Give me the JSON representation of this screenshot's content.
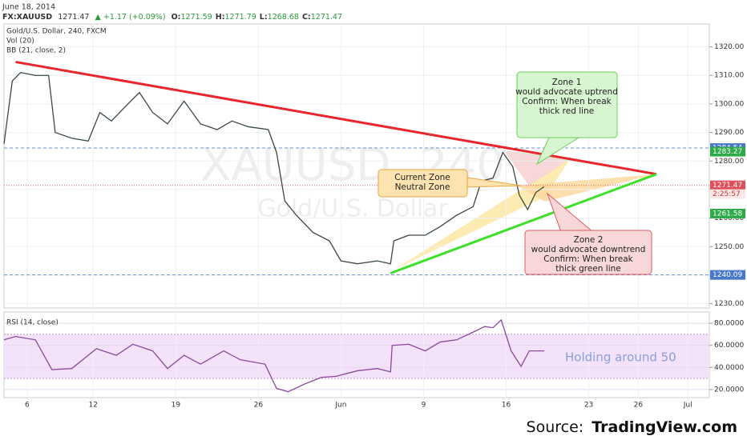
{
  "header": {
    "date": "June 18, 2014",
    "symbol": "FX:XAUUSD",
    "last": "1271.47",
    "change": "+1.17 (+0.09%)",
    "ohlc": [
      {
        "label": "O:",
        "value": "1271.59"
      },
      {
        "label": "H:",
        "value": "1271.79"
      },
      {
        "label": "L:",
        "value": "1268.68"
      },
      {
        "label": "C:",
        "value": "1271.47"
      }
    ]
  },
  "legend": [
    "Gold/U.S. Dollar, 240, FXCM",
    "Vol (20)",
    "BB (21, close, 2)"
  ],
  "watermark": [
    "XAUUSD, 240",
    "Gold/U.S. Dollar"
  ],
  "source": {
    "prefix": "Source:",
    "name": "TradingView.com"
  },
  "chart_data": [
    {
      "type": "line",
      "color": "#3a4a3a",
      "x": [
        -1.4,
        -0.9,
        -0.4,
        0.5,
        1.3,
        1.7,
        2.7,
        3.7,
        4.4,
        5.1,
        6.1,
        6.8,
        7.6,
        8.5,
        9.5,
        10.5,
        11.5,
        12.4,
        13.4,
        14.6,
        15.1,
        15.6,
        16.3,
        17.3,
        18.3,
        19.0,
        20.0,
        21.2,
        22.0,
        22.2,
        23.1,
        24.1,
        25.0,
        26.0,
        27.0,
        27.5,
        28.2,
        28.8,
        29.4,
        29.8,
        30.3,
        30.8,
        31.3
      ],
      "values": [
        1286,
        1308,
        1311,
        1310,
        1310,
        1290,
        1288,
        1287,
        1297,
        1294,
        1300,
        1304,
        1297,
        1293,
        1301,
        1293,
        1291,
        1294,
        1292,
        1291,
        1283,
        1266,
        1261,
        1255,
        1252,
        1245,
        1244,
        1245,
        1244,
        1252,
        1254,
        1254,
        1257,
        1261,
        1264,
        1273,
        1274,
        1283,
        1278,
        1268,
        1263,
        1269,
        1271
      ],
      "xlim": [
        -1.4,
        41.3
      ],
      "xticks": [
        {
          "value": 0,
          "label": "6"
        },
        {
          "value": 4,
          "label": "12"
        },
        {
          "value": 9,
          "label": "19"
        },
        {
          "value": 14,
          "label": "26"
        },
        {
          "value": 19,
          "label": "Jun"
        },
        {
          "value": 24,
          "label": "9"
        },
        {
          "value": 29,
          "label": "16"
        },
        {
          "value": 34,
          "label": "23"
        },
        {
          "value": 37,
          "label": "26"
        },
        {
          "value": 40,
          "label": "Jul"
        }
      ],
      "ylim": [
        1228.5,
        1328
      ],
      "yticks": [
        {
          "value": 1230,
          "label": "1230.00"
        },
        {
          "value": 1240,
          "label": "1240.00"
        },
        {
          "value": 1250,
          "label": "1250.00"
        },
        {
          "value": 1260,
          "label": "1260.00"
        },
        {
          "value": 1270,
          "label": "1270.00"
        },
        {
          "value": 1280,
          "label": "1280.00"
        },
        {
          "value": 1290,
          "label": "1290.00"
        },
        {
          "value": 1300,
          "label": "1300.00"
        },
        {
          "value": 1310,
          "label": "1310.00"
        },
        {
          "value": 1320,
          "label": "1320.00"
        }
      ],
      "grid": true,
      "trendlines": [
        {
          "color": "#e8262c",
          "x": [
            -0.7,
            38.1
          ],
          "values": [
            1314.7,
            1275.4
          ]
        },
        {
          "color": "#3ee02a",
          "x": [
            22.0,
            38.1
          ],
          "values": [
            1240.7,
            1275.4
          ]
        }
      ],
      "hlines": [
        {
          "value": 1284.54,
          "color": "#6a8fd0"
        },
        {
          "value": 1240.09,
          "color": "#6a8fd0"
        },
        {
          "value": 1271.47,
          "color": "#e06060"
        }
      ],
      "price_labels": [
        {
          "value": 1284.54,
          "color": "#4a78c8"
        },
        {
          "value": 1283.27,
          "color": "#2eaa4a"
        },
        {
          "value": 1271.47,
          "color": "#e0505a"
        },
        {
          "value": 1261.58,
          "color": "#2eaa4a"
        },
        {
          "value": 1240.09,
          "color": "#4a78c8"
        }
      ],
      "countdown": "2:25:57",
      "annotations": [
        {
          "lines": [
            "Zone 1",
            "would advocate uptrend",
            "Confirm: When break",
            "thick red line"
          ]
        },
        {
          "lines": [
            "Zone 2",
            "would advocate downtrend",
            "Confirm: When break",
            "thick green line"
          ]
        },
        {
          "lines": [
            "Current Zone",
            "Neutral Zone"
          ]
        }
      ]
    },
    {
      "type": "line",
      "title": "RSI (14, close)",
      "color": "#8a4a9a",
      "x": [
        -1.4,
        -0.7,
        0.5,
        1.5,
        2.7,
        4.2,
        5.4,
        6.4,
        7.6,
        8.5,
        9.5,
        10.5,
        11.9,
        12.9,
        14.4,
        15.1,
        15.8,
        16.8,
        17.8,
        18.7,
        20.0,
        21.2,
        22.0,
        22.1,
        23.1,
        24.1,
        25.0,
        26.0,
        27.0,
        27.7,
        28.2,
        28.7,
        29.3,
        29.9,
        30.4,
        31.3
      ],
      "values": [
        65,
        68,
        65,
        38,
        39,
        57,
        51,
        61,
        55,
        39,
        51,
        43,
        55,
        47,
        43,
        21,
        18,
        25,
        31,
        32,
        37,
        39,
        36,
        60,
        61,
        55,
        63,
        65,
        72,
        77,
        76,
        83,
        55,
        41,
        55,
        55
      ],
      "xlim": [
        -1.4,
        41.3
      ],
      "xticks": [
        {
          "value": 0,
          "label": "6"
        },
        {
          "value": 4,
          "label": "12"
        },
        {
          "value": 9,
          "label": "19"
        },
        {
          "value": 14,
          "label": "26"
        },
        {
          "value": 19,
          "label": "Jun"
        },
        {
          "value": 24,
          "label": "9"
        },
        {
          "value": 29,
          "label": "16"
        },
        {
          "value": 34,
          "label": "23"
        },
        {
          "value": 37,
          "label": "26"
        },
        {
          "value": 40,
          "label": "Jul"
        }
      ],
      "ylim": [
        12.7,
        90.2
      ],
      "yticks": [
        {
          "value": 20,
          "label": "20.0000"
        },
        {
          "value": 40,
          "label": "40.0000"
        },
        {
          "value": 60,
          "label": "60.0000"
        },
        {
          "value": 80,
          "label": "80.0000"
        }
      ],
      "band": [
        30,
        70
      ],
      "annotation": "Holding around 50"
    }
  ]
}
